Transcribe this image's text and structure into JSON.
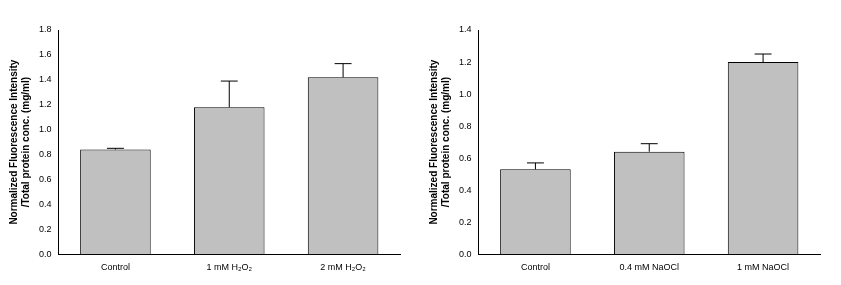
{
  "chart_data": [
    {
      "type": "bar",
      "y_label": [
        "Normalized Fluorescence Intensity",
        "/Total protein conc. (mg/ml)"
      ],
      "categories": [
        "Control",
        "1 mM H₂O₂",
        "2 mM H₂O₂"
      ],
      "values": [
        0.84,
        1.18,
        1.42
      ],
      "errors": [
        0.01,
        0.21,
        0.11
      ],
      "color": "#c0c0c0",
      "ylim": [
        0,
        1.8
      ],
      "yticks": [
        {
          "value": 0,
          "label": "0.0"
        },
        0.2,
        0.4,
        0.6,
        0.8,
        {
          "value": 1,
          "label": "1.0"
        },
        1.2,
        1.4,
        1.6,
        1.8
      ],
      "grid": false
    },
    {
      "type": "bar",
      "y_label": [
        "Normalized Fluorescence Intensity",
        "/Total protein conc. (mg/ml)"
      ],
      "categories": [
        "Control",
        "0.4 mM NaOCl",
        "1 mM NaOCl"
      ],
      "values": [
        0.53,
        0.64,
        1.2
      ],
      "errors": [
        0.04,
        0.05,
        0.05
      ],
      "color": "#c0c0c0",
      "ylim": [
        0,
        1.4
      ],
      "yticks": [
        {
          "value": 0,
          "label": "0.0"
        },
        0.2,
        0.4,
        0.6,
        0.8,
        {
          "value": 1,
          "label": "1.0"
        },
        1.2,
        1.4
      ],
      "grid": false
    }
  ]
}
